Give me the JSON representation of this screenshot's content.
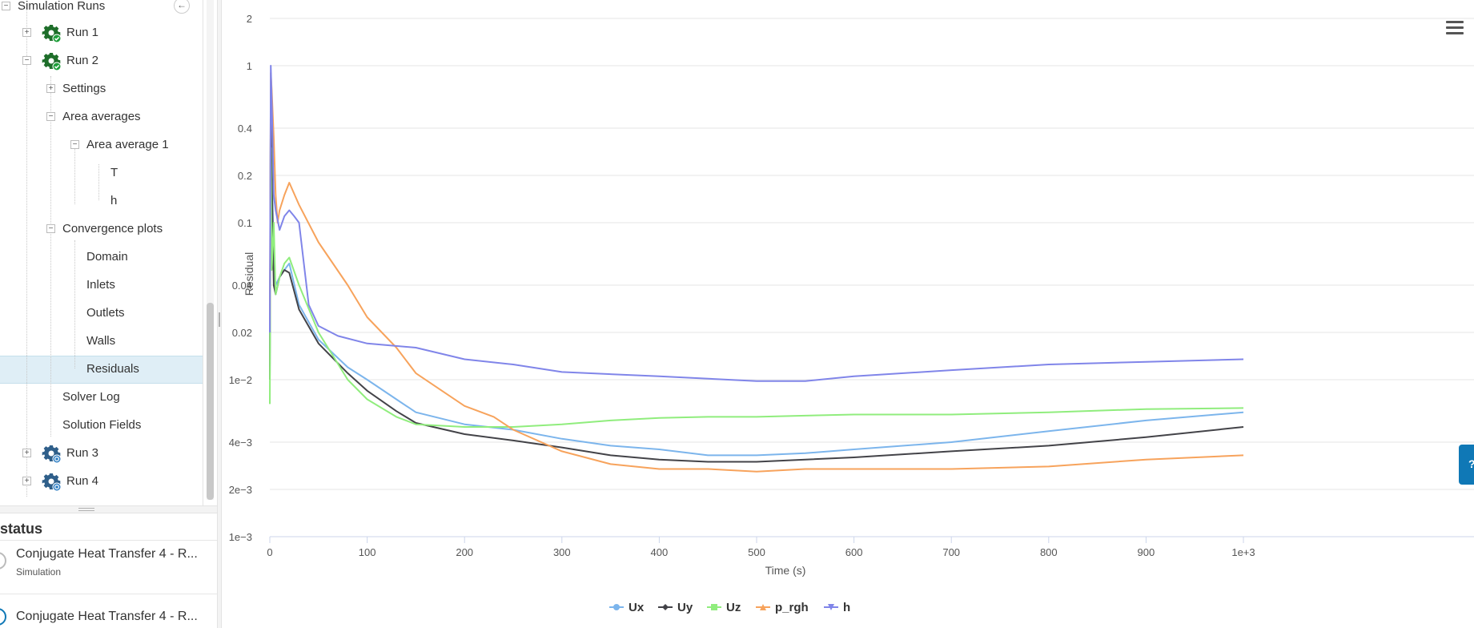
{
  "tree": {
    "root_label": "Simulation Runs",
    "rows": [
      {
        "label": "Run 1",
        "toggle": "+",
        "icon": "gear-check-icon"
      },
      {
        "label": "Run 2",
        "toggle": "−",
        "icon": "gear-check-icon"
      },
      {
        "label": "Settings",
        "toggle": "+"
      },
      {
        "label": "Area averages",
        "toggle": "−"
      },
      {
        "label": "Area average 1",
        "toggle": "−"
      },
      {
        "label": "T"
      },
      {
        "label": "h"
      },
      {
        "label": "Convergence plots",
        "toggle": "−"
      },
      {
        "label": "Domain"
      },
      {
        "label": "Inlets"
      },
      {
        "label": "Outlets"
      },
      {
        "label": "Walls"
      },
      {
        "label": "Residuals",
        "selected": true
      },
      {
        "label": "Solver Log"
      },
      {
        "label": "Solution Fields"
      },
      {
        "label": "Run 3",
        "toggle": "+",
        "icon": "gear-pending-icon"
      },
      {
        "label": "Run 4",
        "toggle": "+",
        "icon": "gear-pending-icon"
      }
    ]
  },
  "status": {
    "title": "status",
    "items": [
      {
        "name": "Conjugate Heat Transfer 4 - R...",
        "type": "Simulation"
      },
      {
        "name": "Conjugate Heat Transfer 4 - R...",
        "type": ""
      }
    ]
  },
  "colors": {
    "Ux": "#7cb5ec",
    "Uy": "#434348",
    "Uz": "#90ed7d",
    "p_rgh": "#f7a35c",
    "h": "#8085e9",
    "selected_bg": "#dfeef6",
    "gear_green": "#1e6e2a",
    "gear_blue": "#2f5f8a"
  },
  "chart_data": {
    "type": "line",
    "title": "",
    "xlabel": "Time (s)",
    "ylabel": "Residual",
    "x_scale": "linear",
    "y_scale": "log",
    "xlim": [
      0,
      1000
    ],
    "ylim": [
      0.001,
      2
    ],
    "x_ticks": [
      "0",
      "100",
      "200",
      "300",
      "400",
      "500",
      "600",
      "700",
      "800",
      "900",
      "1e+3"
    ],
    "y_ticks": [
      "2",
      "1",
      "0.4",
      "0.2",
      "0.1",
      "0.04",
      "0.02",
      "1e−2",
      "4e−3",
      "2e−3",
      "1e−3"
    ],
    "grid": true,
    "legend_placement": "bottom-center",
    "series": [
      {
        "name": "Ux",
        "marker": "circle",
        "x": [
          0,
          1,
          2,
          4,
          6,
          10,
          15,
          20,
          30,
          50,
          80,
          100,
          130,
          150,
          200,
          250,
          300,
          350,
          400,
          450,
          500,
          550,
          600,
          700,
          800,
          900,
          1000
        ],
        "y": [
          0.01,
          0.8,
          0.3,
          0.05,
          0.04,
          0.045,
          0.05,
          0.055,
          0.03,
          0.018,
          0.012,
          0.01,
          0.0075,
          0.0062,
          0.0052,
          0.0048,
          0.0042,
          0.0038,
          0.0036,
          0.0033,
          0.0033,
          0.0034,
          0.0036,
          0.004,
          0.0047,
          0.0055,
          0.0062
        ]
      },
      {
        "name": "Uy",
        "marker": "diamond",
        "x": [
          0,
          1,
          2,
          4,
          6,
          10,
          15,
          20,
          30,
          50,
          80,
          100,
          130,
          150,
          200,
          250,
          300,
          350,
          400,
          450,
          500,
          550,
          600,
          700,
          800,
          900,
          1000
        ],
        "y": [
          0.01,
          0.7,
          0.2,
          0.04,
          0.035,
          0.045,
          0.05,
          0.048,
          0.028,
          0.017,
          0.011,
          0.0085,
          0.0063,
          0.0053,
          0.0045,
          0.0041,
          0.0037,
          0.0033,
          0.0031,
          0.003,
          0.003,
          0.0031,
          0.0032,
          0.0035,
          0.0038,
          0.0043,
          0.005
        ]
      },
      {
        "name": "Uz",
        "marker": "square",
        "x": [
          0,
          1,
          2,
          4,
          6,
          10,
          15,
          20,
          30,
          50,
          80,
          100,
          130,
          150,
          200,
          250,
          300,
          350,
          400,
          450,
          500,
          550,
          600,
          700,
          800,
          900,
          1000
        ],
        "y": [
          0.007,
          0.3,
          0.05,
          0.1,
          0.035,
          0.045,
          0.055,
          0.06,
          0.04,
          0.02,
          0.01,
          0.0075,
          0.0058,
          0.0052,
          0.005,
          0.005,
          0.0052,
          0.0055,
          0.0057,
          0.0058,
          0.0058,
          0.0059,
          0.006,
          0.006,
          0.0062,
          0.0065,
          0.0066
        ]
      },
      {
        "name": "p_rgh",
        "marker": "triangle",
        "x": [
          0,
          1,
          2,
          4,
          6,
          8,
          10,
          15,
          20,
          30,
          50,
          80,
          100,
          130,
          150,
          200,
          230,
          250,
          300,
          350,
          400,
          450,
          500,
          550,
          600,
          700,
          800,
          900,
          1000
        ],
        "y": [
          0.02,
          0.9,
          0.7,
          0.35,
          0.15,
          0.1,
          0.12,
          0.15,
          0.18,
          0.13,
          0.075,
          0.04,
          0.025,
          0.016,
          0.011,
          0.0068,
          0.0058,
          0.0048,
          0.0035,
          0.0029,
          0.0027,
          0.0027,
          0.0026,
          0.0027,
          0.0027,
          0.0027,
          0.0028,
          0.0031,
          0.0033
        ]
      },
      {
        "name": "h",
        "marker": "triangle-down",
        "x": [
          0,
          1,
          2,
          4,
          6,
          10,
          15,
          20,
          25,
          30,
          40,
          50,
          70,
          100,
          150,
          200,
          250,
          300,
          400,
          500,
          550,
          600,
          700,
          800,
          900,
          1000
        ],
        "y": [
          0.02,
          1.0,
          0.6,
          0.15,
          0.12,
          0.09,
          0.11,
          0.12,
          0.11,
          0.1,
          0.03,
          0.022,
          0.019,
          0.017,
          0.016,
          0.0135,
          0.0125,
          0.0112,
          0.0105,
          0.0098,
          0.0098,
          0.0105,
          0.0115,
          0.0125,
          0.013,
          0.0135
        ]
      }
    ]
  }
}
